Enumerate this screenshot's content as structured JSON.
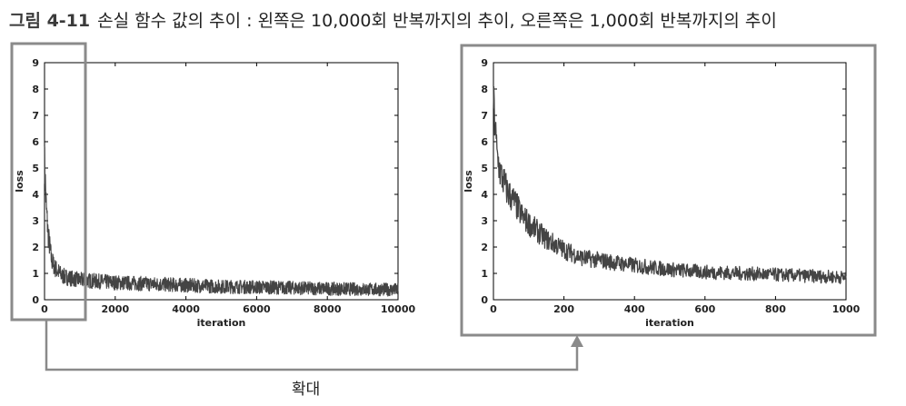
{
  "caption": {
    "number": "그림 4-11",
    "text": "손실 함수 값의 추이 : 왼쪽은 10,000회 반복까지의 추이, 오른쪽은 1,000회 반복까지의 추이"
  },
  "zoom_label": "확대",
  "colors": {
    "line": "#444444",
    "highlight_frame": "#8a8a8a",
    "arrow": "#8a8a8a"
  },
  "chart_data": [
    {
      "type": "line",
      "xlabel": "iteration",
      "ylabel": "loss",
      "xlim": [
        0,
        10000
      ],
      "ylim": [
        0,
        9
      ],
      "xticks": [
        "0",
        "2000",
        "4000",
        "6000",
        "8000",
        "10000"
      ],
      "yticks": [
        "0",
        "1",
        "2",
        "3",
        "4",
        "5",
        "6",
        "7",
        "8",
        "9"
      ],
      "grid": false,
      "series": [
        {
          "x": [
            0,
            50,
            100,
            200,
            300,
            500,
            800,
            1000,
            1500,
            2000,
            3000,
            4000,
            5000,
            6000,
            7000,
            8000,
            9000,
            10000
          ],
          "values": [
            5.3,
            3.5,
            2.5,
            1.5,
            1.2,
            0.9,
            0.8,
            0.75,
            0.7,
            0.65,
            0.6,
            0.55,
            0.5,
            0.48,
            0.45,
            0.42,
            0.4,
            0.38
          ]
        }
      ]
    },
    {
      "type": "line",
      "xlabel": "iteration",
      "ylabel": "loss",
      "xlim": [
        0,
        1000
      ],
      "ylim": [
        0,
        9
      ],
      "xticks": [
        "0",
        "200",
        "400",
        "600",
        "800",
        "1000"
      ],
      "yticks": [
        "0",
        "1",
        "2",
        "3",
        "4",
        "5",
        "6",
        "7",
        "8",
        "9"
      ],
      "grid": false,
      "series": [
        {
          "x": [
            0,
            10,
            20,
            40,
            60,
            80,
            100,
            150,
            200,
            250,
            300,
            400,
            500,
            600,
            700,
            800,
            900,
            1000
          ],
          "values": [
            7.5,
            5.5,
            4.8,
            4.1,
            3.7,
            3.2,
            2.9,
            2.3,
            1.9,
            1.6,
            1.5,
            1.3,
            1.15,
            1.05,
            1.0,
            0.95,
            0.9,
            0.85
          ]
        }
      ]
    }
  ]
}
